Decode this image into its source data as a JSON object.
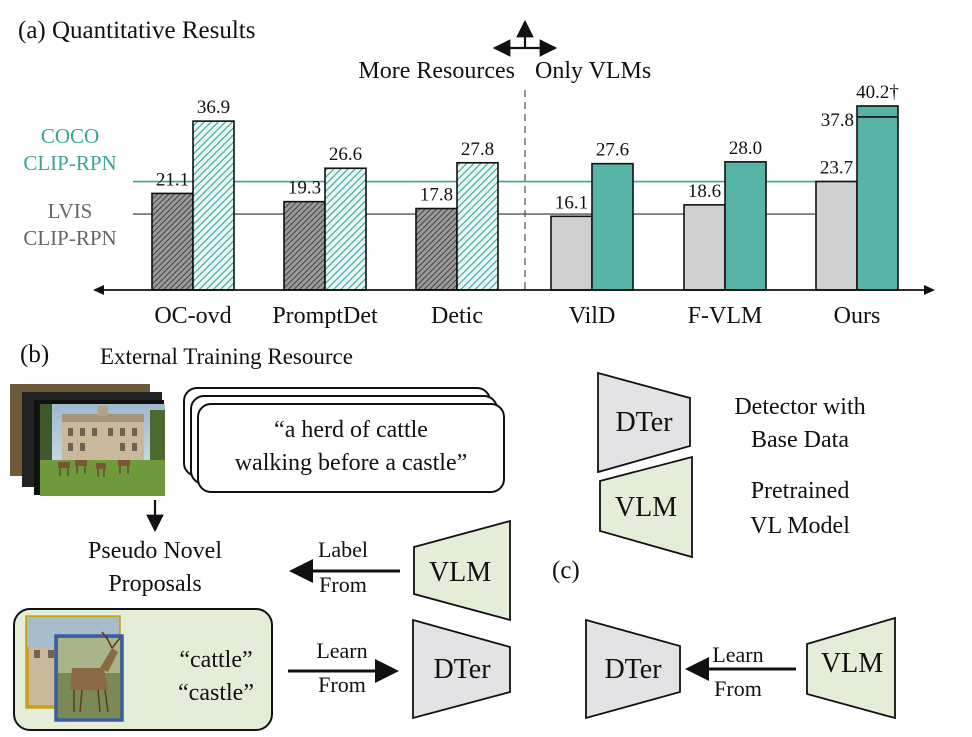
{
  "panel_a": {
    "label": "(a) Quantitative Results",
    "more_resources": "More Resources",
    "only_vlms": "Only VLMs",
    "ref_lines": [
      {
        "label_line1": "COCO",
        "label_line2": "CLIP-RPN",
        "value": 23.7,
        "color": "#3aa597"
      },
      {
        "label_line1": "LVIS",
        "label_line2": "CLIP-RPN",
        "value": 16.6,
        "color": "#666666"
      }
    ]
  },
  "chart_data": {
    "type": "bar",
    "categories": [
      "OC-ovd",
      "PromptDet",
      "Detic",
      "VilD",
      "F-VLM",
      "Ours"
    ],
    "series": [
      {
        "values": [
          21.1,
          19.3,
          17.8,
          16.1,
          18.6,
          23.7
        ],
        "labels": [
          "21.1",
          "19.3",
          "17.8",
          "16.1",
          "18.6",
          "23.7"
        ]
      },
      {
        "values": [
          36.9,
          26.6,
          27.8,
          27.6,
          28.0,
          40.2
        ],
        "labels": [
          "36.9",
          "26.6",
          "27.8",
          "27.6",
          "28.0",
          "40.2†"
        ]
      }
    ],
    "inner_mark": {
      "category": "Ours",
      "value": 37.8,
      "label": "37.8"
    },
    "more_resources_categories": [
      "OC-ovd",
      "PromptDet",
      "Detic"
    ],
    "colors": {
      "lvis_hatch": "#777777",
      "coco_hatch": "#3aa597",
      "lvis_solid": "#d0d0d0",
      "coco_solid": "#56b3a5"
    }
  },
  "panel_b": {
    "label": "(b)",
    "title": "External Training Resource",
    "caption_line1": "“a herd of cattle",
    "caption_line2": "walking before a castle”",
    "pseudo_line1": "Pseudo Novel",
    "pseudo_line2": "Proposals",
    "label_from_line1": "Label",
    "label_from_line2": "From",
    "learn_from_line1": "Learn",
    "learn_from_line2": "From",
    "vlm": "VLM",
    "dter": "DTer",
    "word1": "“cattle”",
    "word2": "“castle”"
  },
  "legend": {
    "dter": "DTer",
    "dter_desc_line1": "Detector with",
    "dter_desc_line2": "Base Data",
    "vlm": "VLM",
    "vlm_desc_line1": "Pretrained",
    "vlm_desc_line2": "VL Model"
  },
  "panel_c": {
    "label": "(c)",
    "dter": "DTer",
    "vlm": "VLM",
    "learn_line1": "Learn",
    "learn_line2": "From"
  }
}
